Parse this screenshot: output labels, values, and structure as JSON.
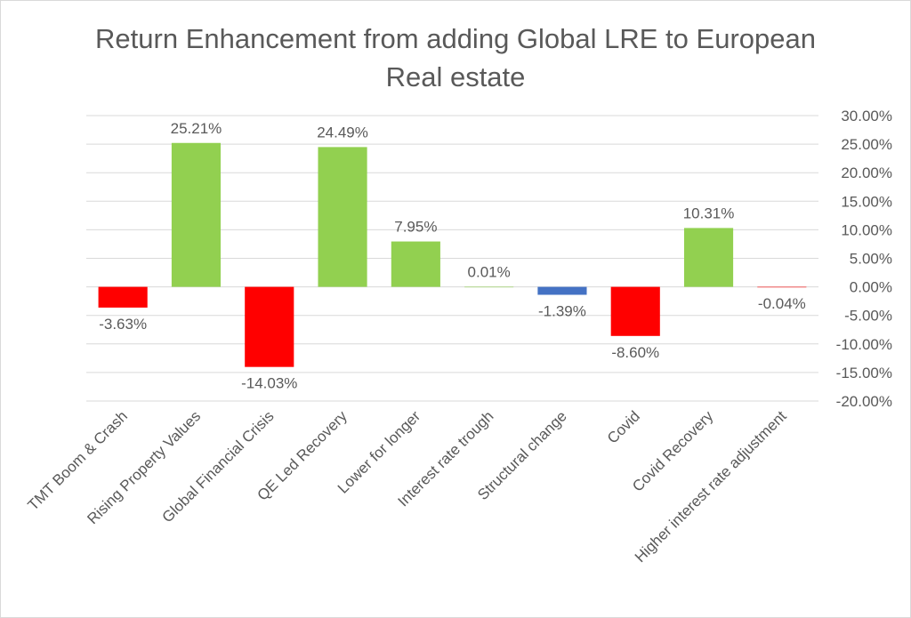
{
  "chart_data": {
    "type": "bar",
    "title_lines": [
      "Return Enhancement from adding Global LRE to European",
      "Real estate"
    ],
    "categories": [
      "TMT Boom & Crash",
      "Rising  Property Values",
      "Global Financial Crisis",
      "QE Led Recovery",
      "Lower for longer",
      "Interest rate trough",
      "Structural change",
      "Covid",
      "Covid Recovery",
      "Higher interest rate adjustment"
    ],
    "values": [
      -3.63,
      25.21,
      -14.03,
      24.49,
      7.95,
      0.01,
      -1.39,
      -8.6,
      10.31,
      -0.04
    ],
    "data_labels": [
      "-3.63%",
      "25.21%",
      "-14.03%",
      "24.49%",
      "7.95%",
      "0.01%",
      "-1.39%",
      "-8.60%",
      "10.31%",
      "-0.04%"
    ],
    "bar_colors": [
      "#ff0000",
      "#92d050",
      "#ff0000",
      "#92d050",
      "#92d050",
      "#92d050",
      "#4472c4",
      "#ff0000",
      "#92d050",
      "#ff0000"
    ],
    "yaxis_position": "right",
    "ylim": [
      -20,
      30
    ],
    "y_ticks": [
      30,
      25,
      20,
      15,
      10,
      5,
      0,
      -5,
      -10,
      -15,
      -20
    ],
    "y_tick_labels": [
      "30.00%",
      "25.00%",
      "20.00%",
      "15.00%",
      "10.00%",
      "5.00%",
      "0.00%",
      "-5.00%",
      "-10.00%",
      "-15.00%",
      "-20.00%"
    ],
    "grid": true,
    "gridline_color": "#d9d9d9",
    "label_color": "#595959"
  }
}
